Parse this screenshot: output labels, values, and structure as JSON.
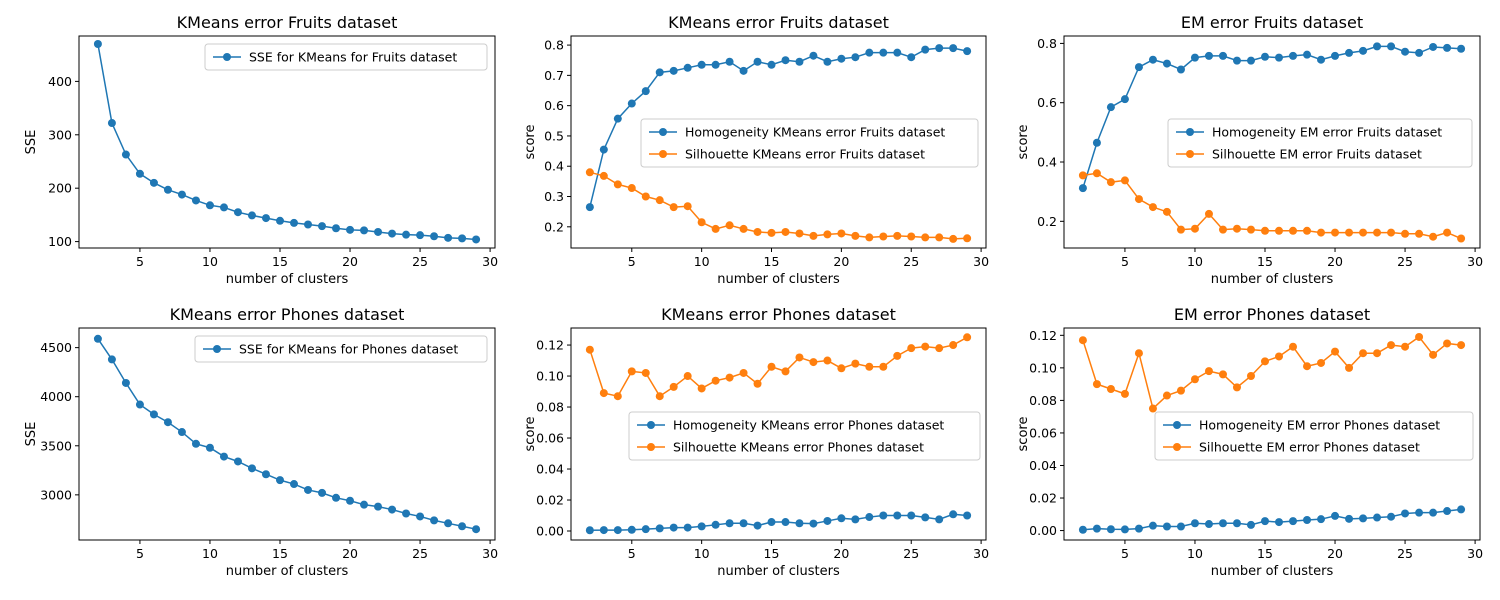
{
  "colors": {
    "blue": "#1f77b4",
    "orange": "#ff7f0e",
    "axis": "#000000",
    "legend_border": "#cccccc"
  },
  "chart_data": [
    {
      "type": "line",
      "title": "KMeans error Fruits dataset",
      "xlabel": "number of clusters",
      "ylabel": "SSE",
      "xlim": [
        0.65,
        30.35
      ],
      "ylim": [
        88,
        485
      ],
      "xticks": [
        5,
        10,
        15,
        20,
        25,
        30
      ],
      "yticks": [
        100,
        200,
        300,
        400
      ],
      "ytick_labels": [
        "100",
        "200",
        "300",
        "400"
      ],
      "legend_position": "upper right",
      "x": [
        2,
        3,
        4,
        5,
        6,
        7,
        8,
        9,
        10,
        11,
        12,
        13,
        14,
        15,
        16,
        17,
        18,
        19,
        20,
        21,
        22,
        23,
        24,
        25,
        26,
        27,
        28,
        29
      ],
      "series": [
        {
          "name": "SSE for KMeans for Fruits dataset",
          "color": "#1f77b4",
          "values": [
            470,
            322,
            263,
            227,
            210,
            197,
            188,
            177,
            168,
            164,
            155,
            149,
            144,
            139,
            135,
            132,
            129,
            125,
            122,
            121,
            118,
            115,
            113,
            112,
            110,
            107,
            106,
            104
          ]
        }
      ]
    },
    {
      "type": "line",
      "title": "KMeans error Fruits dataset",
      "xlabel": "number of clusters",
      "ylabel": "score",
      "xlim": [
        0.65,
        30.35
      ],
      "ylim": [
        0.13,
        0.83
      ],
      "xticks": [
        5,
        10,
        15,
        20,
        25,
        30
      ],
      "yticks": [
        0.2,
        0.3,
        0.4,
        0.5,
        0.6,
        0.7,
        0.8
      ],
      "ytick_labels": [
        "0.2",
        "0.3",
        "0.4",
        "0.5",
        "0.6",
        "0.7",
        "0.8"
      ],
      "legend_position": "center right",
      "x": [
        2,
        3,
        4,
        5,
        6,
        7,
        8,
        9,
        10,
        11,
        12,
        13,
        14,
        15,
        16,
        17,
        18,
        19,
        20,
        21,
        22,
        23,
        24,
        25,
        26,
        27,
        28,
        29
      ],
      "series": [
        {
          "name": "Homogeneity KMeans error Fruits dataset",
          "color": "#1f77b4",
          "values": [
            0.265,
            0.455,
            0.557,
            0.607,
            0.648,
            0.71,
            0.715,
            0.725,
            0.735,
            0.735,
            0.745,
            0.715,
            0.745,
            0.735,
            0.75,
            0.745,
            0.765,
            0.745,
            0.755,
            0.76,
            0.775,
            0.775,
            0.775,
            0.76,
            0.785,
            0.79,
            0.79,
            0.78
          ]
        },
        {
          "name": "Silhouette KMeans error Fruits dataset",
          "color": "#ff7f0e",
          "values": [
            0.38,
            0.368,
            0.34,
            0.328,
            0.3,
            0.288,
            0.265,
            0.268,
            0.215,
            0.193,
            0.205,
            0.193,
            0.183,
            0.18,
            0.183,
            0.178,
            0.17,
            0.175,
            0.178,
            0.17,
            0.165,
            0.168,
            0.17,
            0.168,
            0.165,
            0.165,
            0.16,
            0.162
          ]
        }
      ]
    },
    {
      "type": "line",
      "title": "EM error Fruits dataset",
      "xlabel": "number of clusters",
      "ylabel": "score",
      "xlim": [
        0.65,
        30.35
      ],
      "ylim": [
        0.11,
        0.825
      ],
      "xticks": [
        5,
        10,
        15,
        20,
        25,
        30
      ],
      "yticks": [
        0.2,
        0.4,
        0.6,
        0.8
      ],
      "ytick_labels": [
        "0.2",
        "0.4",
        "0.6",
        "0.8"
      ],
      "legend_position": "center right",
      "x": [
        2,
        3,
        4,
        5,
        6,
        7,
        8,
        9,
        10,
        11,
        12,
        13,
        14,
        15,
        16,
        17,
        18,
        19,
        20,
        21,
        22,
        23,
        24,
        25,
        26,
        27,
        28,
        29
      ],
      "series": [
        {
          "name": "Homogeneity EM error Fruits dataset",
          "color": "#1f77b4",
          "values": [
            0.312,
            0.465,
            0.585,
            0.612,
            0.72,
            0.745,
            0.732,
            0.712,
            0.752,
            0.758,
            0.758,
            0.742,
            0.742,
            0.755,
            0.752,
            0.758,
            0.762,
            0.745,
            0.758,
            0.768,
            0.775,
            0.79,
            0.79,
            0.772,
            0.768,
            0.788,
            0.785,
            0.782
          ]
        },
        {
          "name": "Silhouette EM error Fruits dataset",
          "color": "#ff7f0e",
          "values": [
            0.355,
            0.362,
            0.332,
            0.338,
            0.275,
            0.248,
            0.232,
            0.172,
            0.175,
            0.225,
            0.172,
            0.175,
            0.172,
            0.168,
            0.168,
            0.168,
            0.168,
            0.162,
            0.162,
            0.162,
            0.162,
            0.162,
            0.162,
            0.158,
            0.158,
            0.148,
            0.162,
            0.142
          ]
        }
      ]
    },
    {
      "type": "line",
      "title": "KMeans error Phones dataset",
      "xlabel": "number of clusters",
      "ylabel": "SSE",
      "xlim": [
        0.65,
        30.35
      ],
      "ylim": [
        2540,
        4700
      ],
      "xticks": [
        5,
        10,
        15,
        20,
        25,
        30
      ],
      "yticks": [
        3000,
        3500,
        4000,
        4500
      ],
      "ytick_labels": [
        "3000",
        "3500",
        "4000",
        "4500"
      ],
      "legend_position": "upper right",
      "x": [
        2,
        3,
        4,
        5,
        6,
        7,
        8,
        9,
        10,
        11,
        12,
        13,
        14,
        15,
        16,
        17,
        18,
        19,
        20,
        21,
        22,
        23,
        24,
        25,
        26,
        27,
        28,
        29
      ],
      "series": [
        {
          "name": "SSE for KMeans for Phones dataset",
          "color": "#1f77b4",
          "values": [
            4590,
            4380,
            4140,
            3920,
            3820,
            3740,
            3640,
            3520,
            3480,
            3390,
            3340,
            3270,
            3210,
            3150,
            3110,
            3050,
            3020,
            2970,
            2940,
            2900,
            2880,
            2850,
            2810,
            2780,
            2740,
            2710,
            2680,
            2650
          ]
        }
      ]
    },
    {
      "type": "line",
      "title": "KMeans error Phones dataset",
      "xlabel": "number of clusters",
      "ylabel": "score",
      "xlim": [
        0.65,
        30.35
      ],
      "ylim": [
        -0.0058,
        0.131
      ],
      "xticks": [
        5,
        10,
        15,
        20,
        25,
        30
      ],
      "yticks": [
        0,
        0.02,
        0.04,
        0.06,
        0.08,
        0.1,
        0.12
      ],
      "ytick_labels": [
        "0.00",
        "0.02",
        "0.04",
        "0.06",
        "0.08",
        "0.10",
        "0.12"
      ],
      "legend_position": "center right",
      "x": [
        2,
        3,
        4,
        5,
        6,
        7,
        8,
        9,
        10,
        11,
        12,
        13,
        14,
        15,
        16,
        17,
        18,
        19,
        20,
        21,
        22,
        23,
        24,
        25,
        26,
        27,
        28,
        29
      ],
      "series": [
        {
          "name": "Homogeneity KMeans error Phones dataset",
          "color": "#1f77b4",
          "values": [
            0.0005,
            0.0006,
            0.0006,
            0.0008,
            0.0012,
            0.0017,
            0.0022,
            0.0022,
            0.003,
            0.004,
            0.005,
            0.005,
            0.0035,
            0.0058,
            0.0058,
            0.005,
            0.0048,
            0.0065,
            0.0082,
            0.0075,
            0.009,
            0.01,
            0.01,
            0.01,
            0.0088,
            0.0075,
            0.0108,
            0.01
          ]
        },
        {
          "name": "Silhouette KMeans error Phones dataset",
          "color": "#ff7f0e",
          "values": [
            0.117,
            0.089,
            0.087,
            0.103,
            0.102,
            0.087,
            0.093,
            0.1,
            0.092,
            0.097,
            0.099,
            0.102,
            0.095,
            0.106,
            0.103,
            0.112,
            0.109,
            0.11,
            0.105,
            0.108,
            0.106,
            0.106,
            0.113,
            0.118,
            0.119,
            0.118,
            0.12,
            0.125
          ]
        }
      ]
    },
    {
      "type": "line",
      "title": "EM error Phones dataset",
      "xlabel": "number of clusters",
      "ylabel": "score",
      "xlim": [
        0.65,
        30.35
      ],
      "ylim": [
        -0.0058,
        0.1245
      ],
      "xticks": [
        5,
        10,
        15,
        20,
        25,
        30
      ],
      "yticks": [
        0,
        0.02,
        0.04,
        0.06,
        0.08,
        0.1,
        0.12
      ],
      "ytick_labels": [
        "0.00",
        "0.02",
        "0.04",
        "0.06",
        "0.08",
        "0.10",
        "0.12"
      ],
      "legend_position": "center right",
      "x": [
        2,
        3,
        4,
        5,
        6,
        7,
        8,
        9,
        10,
        11,
        12,
        13,
        14,
        15,
        16,
        17,
        18,
        19,
        20,
        21,
        22,
        23,
        24,
        25,
        26,
        27,
        28,
        29
      ],
      "series": [
        {
          "name": "Homogeneity EM error Phones dataset",
          "color": "#1f77b4",
          "values": [
            0.0005,
            0.0012,
            0.0008,
            0.0007,
            0.0012,
            0.003,
            0.0025,
            0.0025,
            0.0045,
            0.004,
            0.0045,
            0.0045,
            0.0035,
            0.0058,
            0.0052,
            0.0058,
            0.0065,
            0.007,
            0.009,
            0.0072,
            0.0075,
            0.008,
            0.0085,
            0.0105,
            0.011,
            0.011,
            0.012,
            0.013
          ]
        },
        {
          "name": "Silhouette EM error Phones dataset",
          "color": "#ff7f0e",
          "values": [
            0.117,
            0.09,
            0.087,
            0.084,
            0.109,
            0.075,
            0.083,
            0.086,
            0.093,
            0.098,
            0.096,
            0.088,
            0.095,
            0.104,
            0.107,
            0.113,
            0.101,
            0.103,
            0.11,
            0.1,
            0.109,
            0.109,
            0.114,
            0.113,
            0.119,
            0.108,
            0.115,
            0.114
          ]
        }
      ]
    }
  ]
}
